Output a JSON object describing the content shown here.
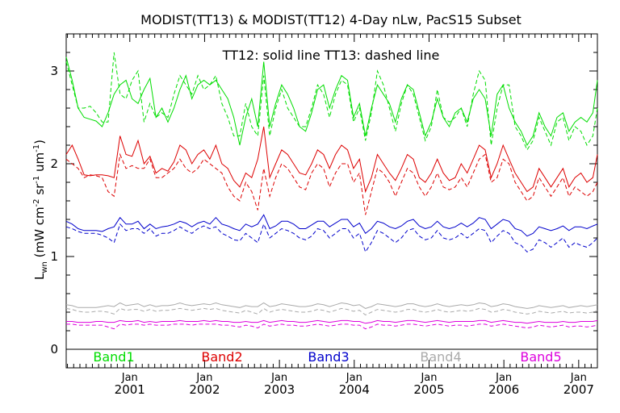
{
  "chart_data": {
    "type": "line",
    "title": "MODIST(TT13) & MODIST(TT12) 4-Day nLw, PacS15 Subset",
    "annotation": "TT12: solid line   TT13: dashed line",
    "ylabel": "L_wn (mW cm^-2 sr^-1 um^-1)",
    "xlabel": "",
    "xlim": [
      2000.15,
      2007.25
    ],
    "ylim": [
      -0.2,
      3.4
    ],
    "yticks": [
      0,
      1,
      2,
      3
    ],
    "xticks": [
      {
        "month": "Jan",
        "year": "2001"
      },
      {
        "month": "Jan",
        "year": "2002"
      },
      {
        "month": "Jan",
        "year": "2003"
      },
      {
        "month": "Jan",
        "year": "2004"
      },
      {
        "month": "Jan",
        "year": "2005"
      },
      {
        "month": "Jan",
        "year": "2006"
      },
      {
        "month": "Jan",
        "year": "2007"
      }
    ],
    "x": [
      2000.15,
      2000.23,
      2000.31,
      2000.39,
      2000.47,
      2000.55,
      2000.63,
      2000.71,
      2000.79,
      2000.87,
      2000.95,
      2001.03,
      2001.11,
      2001.19,
      2001.27,
      2001.35,
      2001.43,
      2001.51,
      2001.59,
      2001.67,
      2001.75,
      2001.83,
      2001.91,
      2001.99,
      2002.07,
      2002.15,
      2002.23,
      2002.31,
      2002.39,
      2002.47,
      2002.55,
      2002.63,
      2002.71,
      2002.79,
      2002.87,
      2002.95,
      2003.03,
      2003.11,
      2003.19,
      2003.27,
      2003.35,
      2003.43,
      2003.51,
      2003.59,
      2003.67,
      2003.75,
      2003.83,
      2003.91,
      2003.99,
      2004.07,
      2004.15,
      2004.23,
      2004.31,
      2004.39,
      2004.47,
      2004.55,
      2004.63,
      2004.71,
      2004.79,
      2004.87,
      2004.95,
      2005.03,
      2005.11,
      2005.19,
      2005.27,
      2005.35,
      2005.43,
      2005.51,
      2005.59,
      2005.67,
      2005.75,
      2005.83,
      2005.91,
      2005.99,
      2006.07,
      2006.15,
      2006.23,
      2006.31,
      2006.39,
      2006.47,
      2006.55,
      2006.63,
      2006.71,
      2006.79,
      2006.87,
      2006.95,
      2007.03,
      2007.11,
      2007.19,
      2007.25
    ],
    "bands": [
      {
        "name": "Band1",
        "color": "#00dd00",
        "tt12": [
          3.15,
          2.9,
          2.6,
          2.5,
          2.48,
          2.46,
          2.4,
          2.55,
          2.75,
          2.85,
          2.9,
          2.7,
          2.65,
          2.8,
          2.92,
          2.5,
          2.6,
          2.45,
          2.6,
          2.8,
          2.95,
          2.7,
          2.85,
          2.9,
          2.85,
          2.9,
          2.8,
          2.7,
          2.5,
          2.2,
          2.5,
          2.7,
          2.4,
          3.1,
          2.4,
          2.65,
          2.85,
          2.75,
          2.6,
          2.4,
          2.35,
          2.55,
          2.8,
          2.85,
          2.6,
          2.8,
          2.95,
          2.9,
          2.5,
          2.65,
          2.3,
          2.6,
          2.85,
          2.75,
          2.65,
          2.45,
          2.7,
          2.85,
          2.8,
          2.55,
          2.3,
          2.45,
          2.7,
          2.5,
          2.4,
          2.55,
          2.6,
          2.45,
          2.7,
          2.8,
          2.7,
          2.3,
          2.75,
          2.85,
          2.6,
          2.45,
          2.35,
          2.2,
          2.3,
          2.55,
          2.4,
          2.3,
          2.5,
          2.55,
          2.35,
          2.45,
          2.5,
          2.45,
          2.55,
          2.9
        ],
        "tt13": [
          3.1,
          2.85,
          2.6,
          2.6,
          2.62,
          2.55,
          2.45,
          2.45,
          3.2,
          2.75,
          2.7,
          2.9,
          3.0,
          2.45,
          2.65,
          2.5,
          2.55,
          2.5,
          2.75,
          2.95,
          2.85,
          2.75,
          2.95,
          2.8,
          2.85,
          2.95,
          2.65,
          2.5,
          2.3,
          2.3,
          2.65,
          2.4,
          2.3,
          2.95,
          2.3,
          2.6,
          2.8,
          2.6,
          2.5,
          2.4,
          2.4,
          2.6,
          2.85,
          2.75,
          2.5,
          2.75,
          2.9,
          2.85,
          2.45,
          2.6,
          2.25,
          2.55,
          3.0,
          2.85,
          2.6,
          2.35,
          2.65,
          2.85,
          2.75,
          2.5,
          2.25,
          2.4,
          2.8,
          2.5,
          2.45,
          2.5,
          2.6,
          2.4,
          2.75,
          3.0,
          2.9,
          2.2,
          2.6,
          2.85,
          2.85,
          2.4,
          2.3,
          2.15,
          2.25,
          2.5,
          2.35,
          2.2,
          2.45,
          2.5,
          2.25,
          2.4,
          2.35,
          2.2,
          2.3,
          2.6
        ]
      },
      {
        "name": "Band2",
        "color": "#dd0000",
        "tt12": [
          2.1,
          2.2,
          2.05,
          1.88,
          1.87,
          1.88,
          1.88,
          1.87,
          1.85,
          2.3,
          2.1,
          2.08,
          2.25,
          2.0,
          2.08,
          1.9,
          1.95,
          1.92,
          2.02,
          2.2,
          2.15,
          2.0,
          2.1,
          2.15,
          2.05,
          2.2,
          2.0,
          1.95,
          1.82,
          1.75,
          1.9,
          1.85,
          2.05,
          2.4,
          1.85,
          2.0,
          2.15,
          2.1,
          2.0,
          1.9,
          1.88,
          2.0,
          2.15,
          2.1,
          1.95,
          2.1,
          2.2,
          2.15,
          1.95,
          2.05,
          1.7,
          1.85,
          2.1,
          2.0,
          1.9,
          1.82,
          1.95,
          2.1,
          2.05,
          1.85,
          1.8,
          1.9,
          2.05,
          1.9,
          1.82,
          1.85,
          2.0,
          1.9,
          2.05,
          2.2,
          2.15,
          1.85,
          2.0,
          2.2,
          2.05,
          1.9,
          1.8,
          1.7,
          1.75,
          1.95,
          1.85,
          1.75,
          1.85,
          1.95,
          1.75,
          1.85,
          1.9,
          1.8,
          1.85,
          2.1
        ],
        "tt13": [
          2.05,
          2.0,
          1.95,
          1.85,
          1.88,
          1.87,
          1.85,
          1.7,
          1.65,
          2.1,
          1.95,
          1.98,
          1.95,
          1.95,
          2.05,
          1.85,
          1.85,
          1.9,
          1.95,
          2.05,
          1.95,
          1.9,
          1.95,
          2.05,
          2.0,
          1.95,
          1.9,
          1.75,
          1.65,
          1.6,
          1.8,
          1.7,
          1.5,
          1.95,
          1.65,
          1.85,
          2.0,
          1.95,
          1.85,
          1.75,
          1.72,
          1.9,
          2.0,
          1.95,
          1.75,
          1.9,
          2.0,
          2.0,
          1.8,
          1.9,
          1.45,
          1.7,
          1.95,
          1.9,
          1.8,
          1.65,
          1.8,
          1.95,
          1.9,
          1.75,
          1.65,
          1.75,
          1.9,
          1.75,
          1.72,
          1.75,
          1.85,
          1.75,
          1.9,
          2.05,
          2.1,
          1.8,
          1.85,
          2.05,
          2.0,
          1.8,
          1.7,
          1.6,
          1.65,
          1.85,
          1.75,
          1.65,
          1.75,
          1.85,
          1.65,
          1.75,
          1.7,
          1.65,
          1.7,
          1.8
        ]
      },
      {
        "name": "Band3",
        "color": "#0000cc",
        "tt12": [
          1.38,
          1.35,
          1.3,
          1.28,
          1.28,
          1.28,
          1.27,
          1.3,
          1.32,
          1.42,
          1.35,
          1.35,
          1.38,
          1.3,
          1.35,
          1.3,
          1.32,
          1.33,
          1.35,
          1.38,
          1.36,
          1.32,
          1.36,
          1.38,
          1.35,
          1.42,
          1.35,
          1.33,
          1.3,
          1.28,
          1.35,
          1.32,
          1.35,
          1.45,
          1.3,
          1.33,
          1.38,
          1.38,
          1.35,
          1.3,
          1.3,
          1.34,
          1.38,
          1.38,
          1.32,
          1.36,
          1.4,
          1.4,
          1.32,
          1.36,
          1.25,
          1.3,
          1.38,
          1.36,
          1.32,
          1.3,
          1.33,
          1.38,
          1.4,
          1.33,
          1.3,
          1.32,
          1.38,
          1.32,
          1.3,
          1.32,
          1.36,
          1.32,
          1.36,
          1.42,
          1.4,
          1.3,
          1.35,
          1.4,
          1.38,
          1.3,
          1.28,
          1.22,
          1.25,
          1.32,
          1.3,
          1.28,
          1.3,
          1.33,
          1.28,
          1.32,
          1.32,
          1.3,
          1.33,
          1.35
        ],
        "tt13": [
          1.32,
          1.3,
          1.27,
          1.25,
          1.25,
          1.25,
          1.23,
          1.2,
          1.15,
          1.35,
          1.28,
          1.3,
          1.3,
          1.25,
          1.3,
          1.22,
          1.25,
          1.25,
          1.28,
          1.32,
          1.28,
          1.25,
          1.3,
          1.33,
          1.3,
          1.32,
          1.25,
          1.22,
          1.18,
          1.17,
          1.25,
          1.2,
          1.15,
          1.35,
          1.2,
          1.25,
          1.3,
          1.28,
          1.25,
          1.2,
          1.18,
          1.22,
          1.3,
          1.28,
          1.2,
          1.25,
          1.3,
          1.3,
          1.2,
          1.25,
          1.05,
          1.15,
          1.28,
          1.25,
          1.2,
          1.15,
          1.2,
          1.28,
          1.3,
          1.22,
          1.18,
          1.2,
          1.28,
          1.2,
          1.18,
          1.2,
          1.25,
          1.2,
          1.25,
          1.3,
          1.28,
          1.15,
          1.22,
          1.28,
          1.25,
          1.15,
          1.12,
          1.05,
          1.08,
          1.18,
          1.15,
          1.1,
          1.15,
          1.2,
          1.1,
          1.15,
          1.12,
          1.1,
          1.15,
          1.2
        ]
      },
      {
        "name": "Band4",
        "color": "#aaaaaa",
        "tt12": [
          0.48,
          0.47,
          0.45,
          0.45,
          0.45,
          0.45,
          0.46,
          0.47,
          0.46,
          0.5,
          0.47,
          0.48,
          0.49,
          0.46,
          0.48,
          0.46,
          0.47,
          0.47,
          0.48,
          0.5,
          0.48,
          0.47,
          0.48,
          0.49,
          0.48,
          0.5,
          0.48,
          0.47,
          0.46,
          0.45,
          0.47,
          0.46,
          0.46,
          0.5,
          0.46,
          0.47,
          0.49,
          0.48,
          0.47,
          0.46,
          0.46,
          0.47,
          0.49,
          0.48,
          0.46,
          0.48,
          0.5,
          0.49,
          0.47,
          0.48,
          0.44,
          0.46,
          0.49,
          0.48,
          0.47,
          0.46,
          0.47,
          0.49,
          0.49,
          0.47,
          0.46,
          0.47,
          0.49,
          0.47,
          0.46,
          0.47,
          0.48,
          0.47,
          0.48,
          0.5,
          0.49,
          0.46,
          0.47,
          0.49,
          0.48,
          0.46,
          0.45,
          0.44,
          0.45,
          0.47,
          0.46,
          0.45,
          0.46,
          0.47,
          0.45,
          0.46,
          0.47,
          0.46,
          0.47,
          0.48
        ],
        "tt13": [
          0.44,
          0.43,
          0.41,
          0.4,
          0.4,
          0.41,
          0.41,
          0.4,
          0.38,
          0.44,
          0.42,
          0.43,
          0.43,
          0.41,
          0.43,
          0.41,
          0.42,
          0.42,
          0.43,
          0.44,
          0.43,
          0.42,
          0.43,
          0.44,
          0.43,
          0.44,
          0.42,
          0.41,
          0.4,
          0.39,
          0.42,
          0.4,
          0.38,
          0.44,
          0.4,
          0.42,
          0.43,
          0.42,
          0.41,
          0.4,
          0.4,
          0.41,
          0.43,
          0.42,
          0.4,
          0.42,
          0.44,
          0.43,
          0.41,
          0.42,
          0.37,
          0.4,
          0.43,
          0.42,
          0.41,
          0.4,
          0.41,
          0.43,
          0.43,
          0.41,
          0.4,
          0.41,
          0.43,
          0.41,
          0.4,
          0.41,
          0.42,
          0.41,
          0.42,
          0.44,
          0.43,
          0.4,
          0.41,
          0.43,
          0.42,
          0.4,
          0.39,
          0.38,
          0.39,
          0.41,
          0.4,
          0.39,
          0.4,
          0.41,
          0.39,
          0.4,
          0.4,
          0.39,
          0.4,
          0.42
        ]
      },
      {
        "name": "Band5",
        "color": "#dd00dd",
        "tt12": [
          0.3,
          0.3,
          0.29,
          0.29,
          0.29,
          0.3,
          0.3,
          0.29,
          0.29,
          0.31,
          0.3,
          0.3,
          0.31,
          0.29,
          0.3,
          0.29,
          0.3,
          0.3,
          0.3,
          0.31,
          0.3,
          0.3,
          0.3,
          0.31,
          0.3,
          0.31,
          0.3,
          0.3,
          0.29,
          0.29,
          0.3,
          0.29,
          0.29,
          0.31,
          0.29,
          0.3,
          0.31,
          0.3,
          0.3,
          0.29,
          0.29,
          0.3,
          0.31,
          0.3,
          0.29,
          0.3,
          0.31,
          0.31,
          0.3,
          0.3,
          0.28,
          0.29,
          0.31,
          0.3,
          0.3,
          0.29,
          0.3,
          0.31,
          0.31,
          0.3,
          0.29,
          0.3,
          0.31,
          0.3,
          0.29,
          0.3,
          0.3,
          0.3,
          0.3,
          0.31,
          0.31,
          0.29,
          0.3,
          0.31,
          0.3,
          0.29,
          0.29,
          0.28,
          0.29,
          0.3,
          0.29,
          0.29,
          0.29,
          0.3,
          0.29,
          0.29,
          0.3,
          0.3,
          0.3,
          0.31
        ],
        "tt13": [
          0.27,
          0.27,
          0.26,
          0.26,
          0.26,
          0.26,
          0.26,
          0.24,
          0.22,
          0.27,
          0.26,
          0.27,
          0.27,
          0.26,
          0.27,
          0.26,
          0.26,
          0.26,
          0.27,
          0.27,
          0.27,
          0.26,
          0.27,
          0.27,
          0.27,
          0.27,
          0.26,
          0.26,
          0.25,
          0.24,
          0.26,
          0.25,
          0.23,
          0.27,
          0.25,
          0.26,
          0.27,
          0.26,
          0.26,
          0.25,
          0.25,
          0.26,
          0.27,
          0.26,
          0.25,
          0.26,
          0.27,
          0.27,
          0.26,
          0.26,
          0.22,
          0.24,
          0.27,
          0.26,
          0.26,
          0.25,
          0.26,
          0.27,
          0.27,
          0.26,
          0.25,
          0.26,
          0.27,
          0.26,
          0.25,
          0.26,
          0.26,
          0.25,
          0.26,
          0.27,
          0.27,
          0.25,
          0.26,
          0.27,
          0.26,
          0.25,
          0.24,
          0.23,
          0.24,
          0.26,
          0.25,
          0.24,
          0.25,
          0.26,
          0.24,
          0.25,
          0.25,
          0.24,
          0.25,
          0.26
        ]
      }
    ],
    "grid": false,
    "legend_position": "bottom-inside"
  }
}
